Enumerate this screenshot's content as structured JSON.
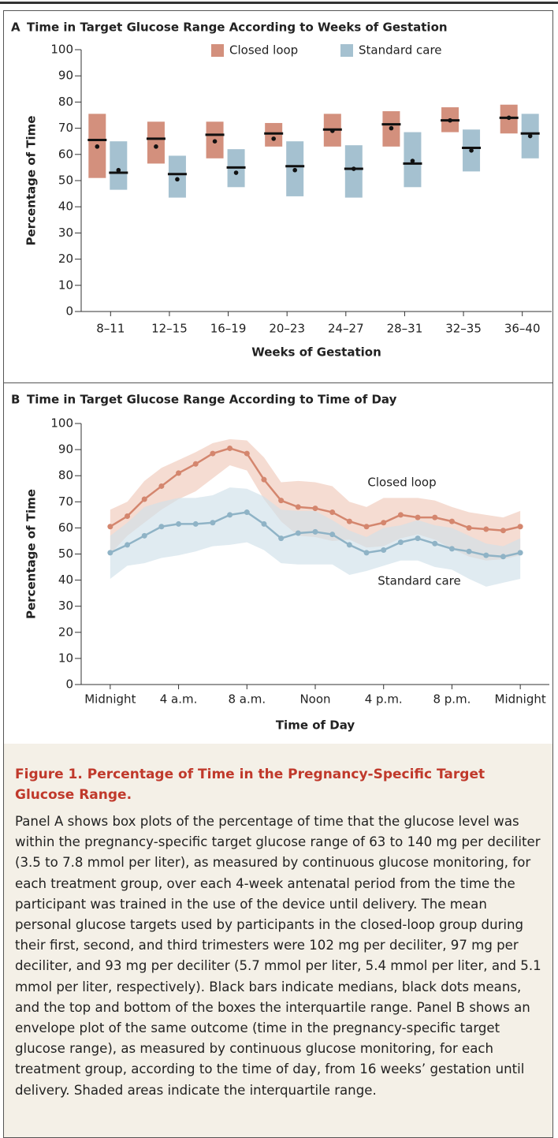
{
  "chart_data": [
    {
      "type": "box",
      "panel_label": "A",
      "title": "Time in Target Glucose Range According to Weeks of Gestation",
      "xlabel": "Weeks of Gestation",
      "ylabel": "Percentage of Time",
      "categories": [
        "8–11",
        "12–15",
        "16–19",
        "20–23",
        "24–27",
        "28–31",
        "32–35",
        "36–40"
      ],
      "ylim": [
        0,
        100
      ],
      "yticks": [
        0,
        10,
        20,
        30,
        40,
        50,
        60,
        70,
        80,
        90,
        100
      ],
      "series": [
        {
          "name": "Closed loop",
          "color": "#d3907d",
          "q1": [
            51,
            56.5,
            58.5,
            63,
            63,
            63,
            68.5,
            68
          ],
          "q3": [
            75.5,
            72.5,
            72.5,
            72,
            75.5,
            76.5,
            78,
            79
          ],
          "median": [
            65.5,
            66,
            67.5,
            68,
            69.5,
            71.5,
            73,
            74
          ],
          "mean": [
            63,
            63,
            65,
            66,
            69,
            70,
            73,
            74
          ]
        },
        {
          "name": "Standard care",
          "color": "#a5c1d0",
          "q1": [
            46.5,
            43.5,
            47.5,
            44,
            43.5,
            47.5,
            53.5,
            58.5
          ],
          "q3": [
            65,
            59.5,
            62,
            65,
            63.5,
            68.5,
            69.5,
            75.5
          ],
          "median": [
            53,
            52.5,
            55,
            55.5,
            54.5,
            56.5,
            62.5,
            68
          ],
          "mean": [
            54,
            50.5,
            53,
            54,
            54.5,
            57.5,
            61.5,
            67
          ]
        }
      ]
    },
    {
      "type": "envelope",
      "panel_label": "B",
      "title": "Time in Target Glucose Range According to Time of Day",
      "xlabel": "Time of Day",
      "ylabel": "Percentage of Time",
      "x": [
        0,
        1,
        2,
        3,
        4,
        5,
        6,
        7,
        8,
        9,
        10,
        11,
        12,
        13,
        14,
        15,
        16,
        17,
        18,
        19,
        20,
        21,
        22,
        23,
        24
      ],
      "xlim": [
        -1.7,
        25.7
      ],
      "xticks": [
        {
          "value": 0,
          "label": "Midnight"
        },
        {
          "value": 4,
          "label": "4 a.m."
        },
        {
          "value": 8,
          "label": "8 a.m."
        },
        {
          "value": 12,
          "label": "Noon"
        },
        {
          "value": 16,
          "label": "4 p.m."
        },
        {
          "value": 20,
          "label": "8 p.m."
        },
        {
          "value": 24,
          "label": "Midnight"
        }
      ],
      "ylim": [
        0,
        100
      ],
      "yticks": [
        0,
        10,
        20,
        30,
        40,
        50,
        60,
        70,
        80,
        90,
        100
      ],
      "series": [
        {
          "name": "Closed loop",
          "color": "#d4866e",
          "band_color": "#f0c9ba",
          "values": [
            60.5,
            64.5,
            71,
            76,
            81,
            84.5,
            88.5,
            90.5,
            88.5,
            78.5,
            70.5,
            68,
            67.5,
            66,
            62.5,
            60.5,
            62,
            65,
            64,
            64,
            62.5,
            60,
            59.5,
            59,
            60.5
          ],
          "upper": [
            67,
            70,
            78,
            83,
            86,
            89,
            92.5,
            94,
            93.5,
            87,
            77.5,
            78,
            77.5,
            76,
            70,
            68,
            71.5,
            71.5,
            71.5,
            70.5,
            68,
            66,
            65,
            64,
            66.5
          ],
          "lower": [
            50,
            57,
            62,
            67,
            71,
            74,
            79,
            84,
            82,
            71,
            62.5,
            57,
            56.5,
            55,
            55.5,
            52.5,
            53,
            56,
            57.5,
            55.5,
            52,
            49,
            47.5,
            48,
            49.5
          ]
        },
        {
          "name": "Standard care",
          "color": "#8fb3c6",
          "band_color": "#cfe0ea",
          "values": [
            50.5,
            53.5,
            57,
            60.5,
            61.5,
            61.5,
            62,
            65,
            66,
            61.5,
            56,
            58,
            58.5,
            57.5,
            53.5,
            50.5,
            51.5,
            54.5,
            56,
            54,
            52,
            51,
            49.5,
            49,
            50.5
          ],
          "upper": [
            57,
            62,
            68,
            70,
            71.5,
            71.5,
            72.5,
            75.5,
            75,
            72,
            67,
            66.5,
            66.5,
            63,
            59,
            56.5,
            60,
            61,
            63,
            61,
            60,
            57,
            54,
            53,
            56
          ],
          "lower": [
            40.5,
            45.5,
            46.5,
            48.5,
            49.5,
            51,
            53,
            53.5,
            54.5,
            51.5,
            46.5,
            46,
            46,
            46,
            42,
            43.5,
            45.5,
            47.5,
            47.5,
            45,
            44,
            40.5,
            37.5,
            39,
            40.5
          ]
        }
      ]
    }
  ],
  "caption": {
    "title": "Figure 1. Percentage of Time in the Pregnancy-Specific Target Glucose Range.",
    "body": "Panel A shows box plots of the percentage of time that the glucose level was within the pregnancy-specific target glucose range of 63 to 140 mg per deciliter (3.5 to 7.8 mmol per liter), as measured by continuous glucose monitoring, for each treatment group, over each 4-week antenatal period from the time the participant was trained in the use of the device until delivery. The mean personal glucose targets used by participants in the closed-loop group during their first, second, and third trimesters were 102 mg per deciliter, 97 mg per deciliter, and 93 mg per deciliter (5.7 mmol per liter, 5.4 mmol per liter, and 5.1 mmol per liter, respectively). Black bars indicate medians, black dots means, and the top and bottom of the boxes the interquartile range. Panel B shows an envelope plot of the same outcome (time in the pregnancy-specific target glucose range), as measured by continuous glucose monitoring, for each treatment group, according to the time of day, from 16 weeks’ gestation until delivery. Shaded areas indicate the interquartile range."
  }
}
